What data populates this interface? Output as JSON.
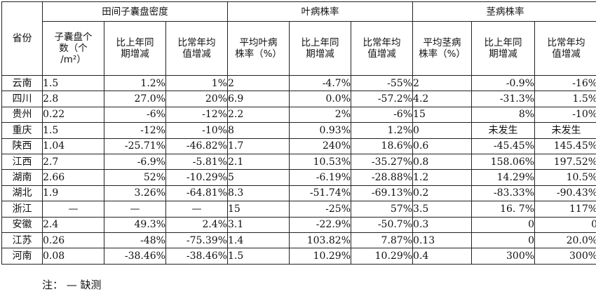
{
  "header": {
    "province": "省份",
    "groups": [
      "田间子囊盘密度",
      "叶病株率",
      "茎病株率"
    ],
    "density_cols": [
      [
        "子囊盘个",
        "数（个",
        "/m²）"
      ],
      [
        "比上年同",
        "期增减"
      ],
      [
        "比常年均",
        "值增减"
      ]
    ],
    "leaf_cols": [
      [
        "平均叶病",
        "株率（%）"
      ],
      [
        "比上年同",
        "期增减"
      ],
      [
        "比常年均",
        "值增减"
      ]
    ],
    "stem_cols": [
      [
        "平均茎病",
        "株率（%）"
      ],
      [
        "比上年同",
        "期增减"
      ],
      [
        "比常年均",
        "值增减"
      ]
    ]
  },
  "rows": [
    [
      "云南",
      "1.5",
      "1.2%",
      "1%",
      "2",
      "-4.7%",
      "-55%",
      "2",
      "-0.9%",
      "-16%"
    ],
    [
      "四川",
      "2.8",
      "27.0%",
      "20%",
      "6.9",
      "0.0%",
      "-57.2%",
      "4.2",
      "-31.3%",
      "1.5%"
    ],
    [
      "贵州",
      "0.22",
      "-6%",
      "-12%",
      "2.2",
      "2%",
      "-6%",
      "15",
      "8%",
      "-10%"
    ],
    [
      "重庆",
      "1.5",
      "-12%",
      "-10%",
      "8",
      "0.93%",
      "1.2%",
      "0",
      "未发生",
      "未发生"
    ],
    [
      "陕西",
      "1.04",
      "-25.71%",
      "-46.82%",
      "1.7",
      "240%",
      "18.6%",
      "0.6",
      "-45.45%",
      "145.45%"
    ],
    [
      "江西",
      "2.7",
      "-6.9%",
      "-5.81%",
      "2.1",
      "10.53%",
      "-35.27%",
      "0.8",
      "158.06%",
      "197.52%"
    ],
    [
      "湖南",
      "2.66",
      "52%",
      "-10.29%",
      "5",
      "-6.19%",
      "-28.88%",
      "1.2",
      "14.29%",
      "10.5%"
    ],
    [
      "湖北",
      "1.9",
      "3.26%",
      "-64.81%",
      "8.3",
      "-51.74%",
      "-69.13%",
      "0.2",
      "-83.33%",
      "-90.43%"
    ],
    [
      "浙江",
      "—",
      "—",
      "—",
      "15",
      "-25%",
      "57%",
      "3.5",
      "16. 7%",
      "117%"
    ],
    [
      "安徽",
      "2.4",
      "49.3%",
      "2.4%",
      "3.1",
      "-22.9%",
      "-50.7%",
      "0.3",
      "0",
      "0"
    ],
    [
      "江苏",
      "0.26",
      "-48%",
      "-75.39%",
      "1.4",
      "103.82%",
      "7.87%",
      "0.13",
      "0",
      "20.0%"
    ],
    [
      "河南",
      "0.08",
      "-38.46%",
      "-38.46%",
      "1.5",
      "10.29%",
      "10.29%",
      "0.4",
      "300%",
      "300%"
    ]
  ],
  "note": "注： — 缺测"
}
